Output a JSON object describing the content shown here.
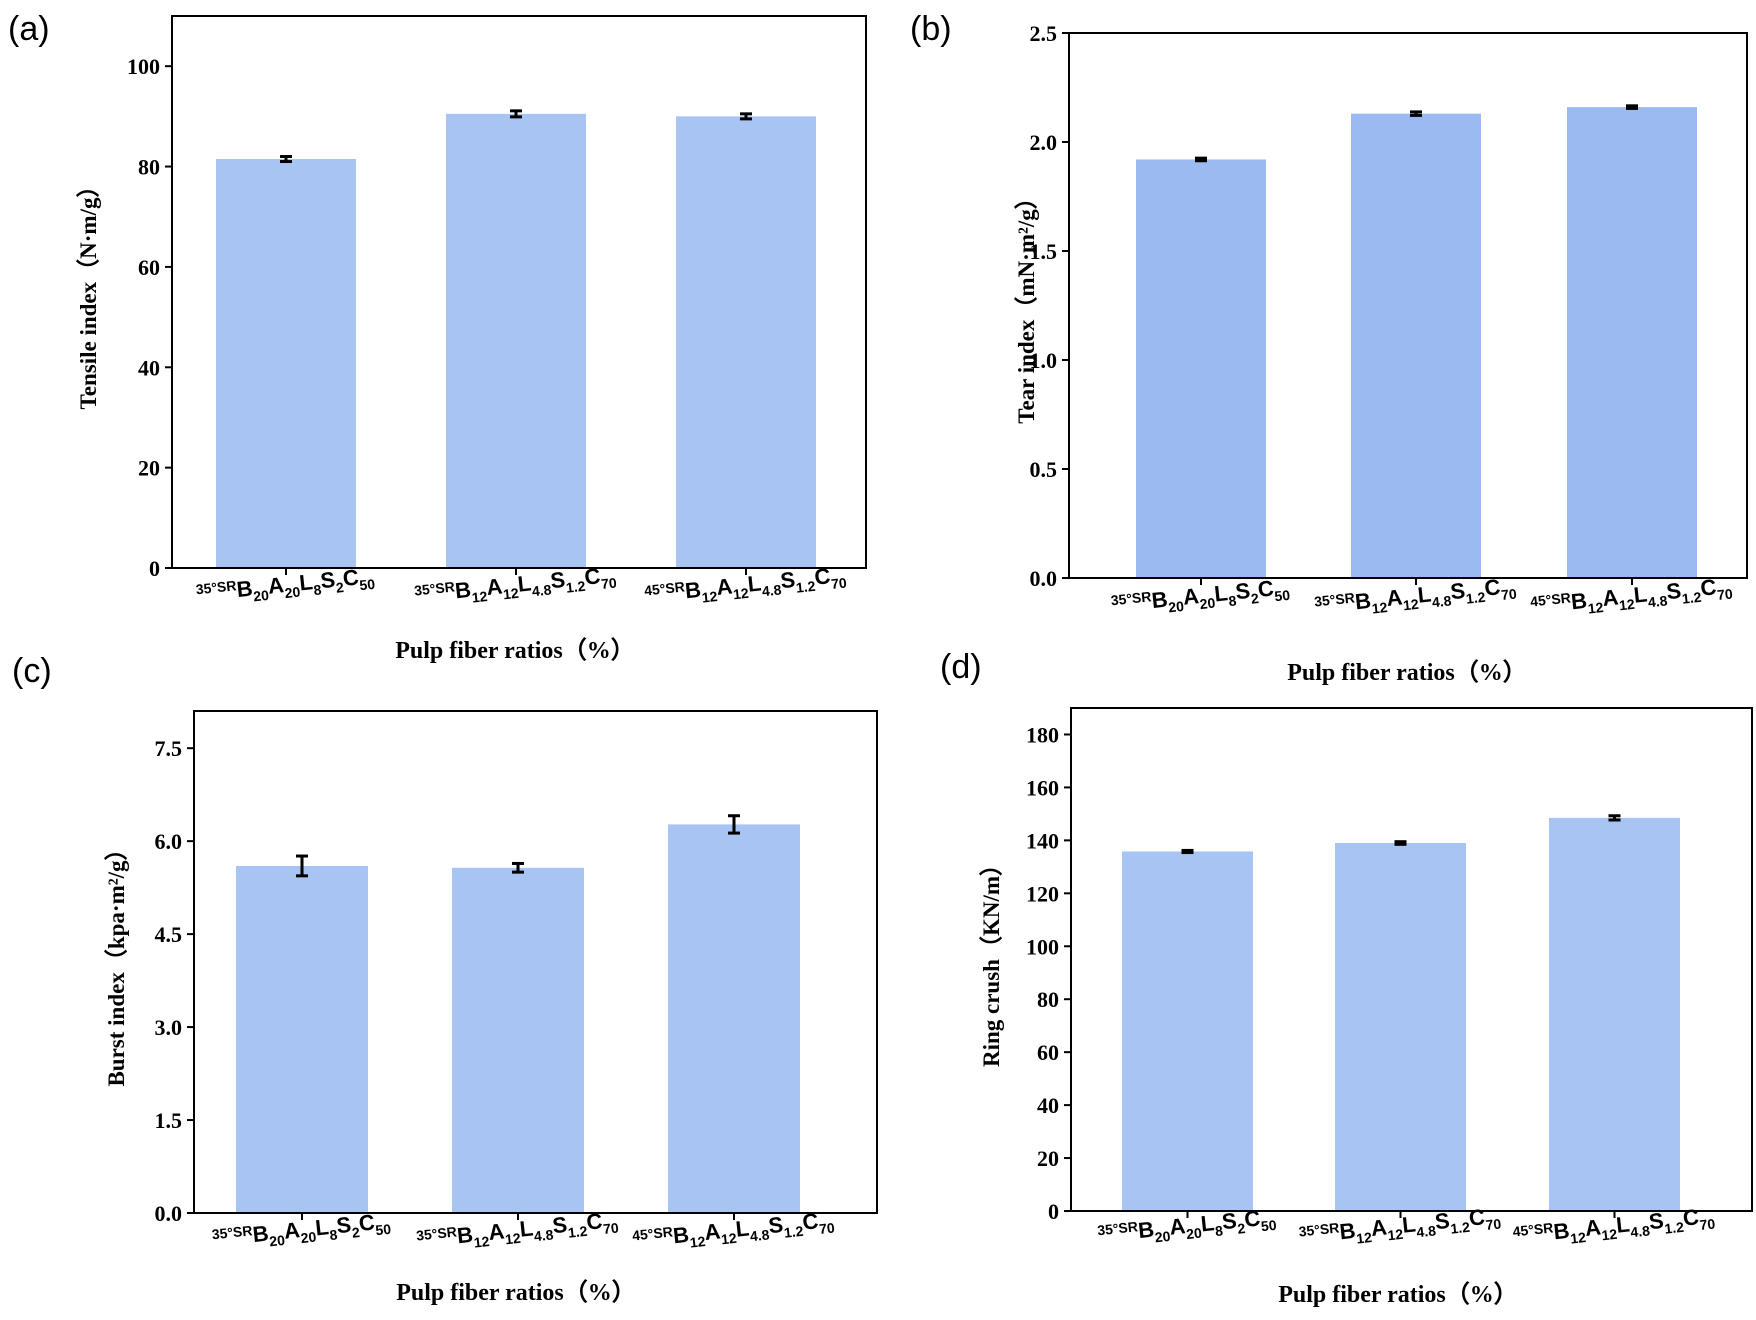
{
  "chart_data": [
    {
      "panel": "(a)",
      "type": "bar",
      "categories": [
        {
          "pre": "35°SR",
          "parts": [
            [
              "B",
              "20"
            ],
            [
              "A",
              "20"
            ],
            [
              "L",
              "8"
            ],
            [
              "S",
              "2"
            ],
            [
              "C",
              "50"
            ]
          ]
        },
        {
          "pre": "35°SR",
          "parts": [
            [
              "B",
              "12"
            ],
            [
              "A",
              "12"
            ],
            [
              "L",
              "4.8"
            ],
            [
              "S",
              "1.2"
            ],
            [
              "C",
              "70"
            ]
          ]
        },
        {
          "pre": "45°SR",
          "parts": [
            [
              "B",
              "12"
            ],
            [
              "A",
              "12"
            ],
            [
              "L",
              "4.8"
            ],
            [
              "S",
              "1.2"
            ],
            [
              "C",
              "70"
            ]
          ]
        }
      ],
      "values": [
        81.5,
        90.5,
        90.0
      ],
      "errors": [
        0.5,
        0.6,
        0.5
      ],
      "ylabel": "Tensile index（N·m/g）",
      "xlabel": "Pulp fiber ratios（%）",
      "ylim": [
        0,
        110
      ],
      "yticks": [
        "0",
        "20",
        "40",
        "60",
        "80",
        "100"
      ],
      "bar_color": "#a7c4f2"
    },
    {
      "panel": "(b)",
      "type": "bar",
      "categories": [
        {
          "pre": "35°SR",
          "parts": [
            [
              "B",
              "20"
            ],
            [
              "A",
              "20"
            ],
            [
              "L",
              "8"
            ],
            [
              "S",
              "2"
            ],
            [
              "C",
              "50"
            ]
          ]
        },
        {
          "pre": "35°SR",
          "parts": [
            [
              "B",
              "12"
            ],
            [
              "A",
              "12"
            ],
            [
              "L",
              "4.8"
            ],
            [
              "S",
              "1.2"
            ],
            [
              "C",
              "70"
            ]
          ]
        },
        {
          "pre": "45°SR",
          "parts": [
            [
              "B",
              "12"
            ],
            [
              "A",
              "12"
            ],
            [
              "L",
              "4.8"
            ],
            [
              "S",
              "1.2"
            ],
            [
              "C",
              "70"
            ]
          ]
        }
      ],
      "values": [
        1.92,
        2.13,
        2.16
      ],
      "errors": [
        0.006,
        0.008,
        0.006
      ],
      "ylabel": "Tear index（mN·m²/g）",
      "xlabel": "Pulp fiber ratios（%）",
      "ylim": [
        0,
        2.5
      ],
      "yticks": [
        "0.0",
        "0.5",
        "1.0",
        "1.5",
        "2.0",
        "2.5"
      ],
      "bar_color": "#9bbaf2"
    },
    {
      "panel": "(c)",
      "type": "bar",
      "categories": [
        {
          "pre": "35°SR",
          "parts": [
            [
              "B",
              "20"
            ],
            [
              "A",
              "20"
            ],
            [
              "L",
              "8"
            ],
            [
              "S",
              "2"
            ],
            [
              "C",
              "50"
            ]
          ]
        },
        {
          "pre": "35°SR",
          "parts": [
            [
              "B",
              "12"
            ],
            [
              "A",
              "12"
            ],
            [
              "L",
              "4.8"
            ],
            [
              "S",
              "1.2"
            ],
            [
              "C",
              "70"
            ]
          ]
        },
        {
          "pre": "45°SR",
          "parts": [
            [
              "B",
              "12"
            ],
            [
              "A",
              "12"
            ],
            [
              "L",
              "4.8"
            ],
            [
              "S",
              "1.2"
            ],
            [
              "C",
              "70"
            ]
          ]
        }
      ],
      "values": [
        5.6,
        5.57,
        6.27
      ],
      "errors": [
        0.16,
        0.07,
        0.14
      ],
      "ylabel": "Burst index（kpa·m²/g）",
      "xlabel": "Pulp fiber ratios（%）",
      "ylim": [
        0,
        8.1
      ],
      "yticks": [
        "0.0",
        "1.5",
        "3.0",
        "4.5",
        "6.0",
        "7.5"
      ],
      "bar_color": "#a7c4f2"
    },
    {
      "panel": "(d)",
      "type": "bar",
      "categories": [
        {
          "pre": "35°SR",
          "parts": [
            [
              "B",
              "20"
            ],
            [
              "A",
              "20"
            ],
            [
              "L",
              "8"
            ],
            [
              "S",
              "2"
            ],
            [
              "C",
              "50"
            ]
          ]
        },
        {
          "pre": "35°SR",
          "parts": [
            [
              "B",
              "12"
            ],
            [
              "A",
              "12"
            ],
            [
              "L",
              "4.8"
            ],
            [
              "S",
              "1.2"
            ],
            [
              "C",
              "70"
            ]
          ]
        },
        {
          "pre": "45°SR",
          "parts": [
            [
              "B",
              "12"
            ],
            [
              "A",
              "12"
            ],
            [
              "L",
              "4.8"
            ],
            [
              "S",
              "1.2"
            ],
            [
              "C",
              "70"
            ]
          ]
        }
      ],
      "values": [
        135.8,
        139.0,
        148.5
      ],
      "errors": [
        0.4,
        0.5,
        0.8
      ],
      "ylabel": "Ring crush（KN/m）",
      "xlabel": "Pulp fiber ratios（%）",
      "ylim": [
        0,
        190
      ],
      "yticks": [
        "0",
        "20",
        "40",
        "60",
        "80",
        "100",
        "120",
        "140",
        "160",
        "180"
      ],
      "bar_color": "#a7c4f2"
    }
  ]
}
